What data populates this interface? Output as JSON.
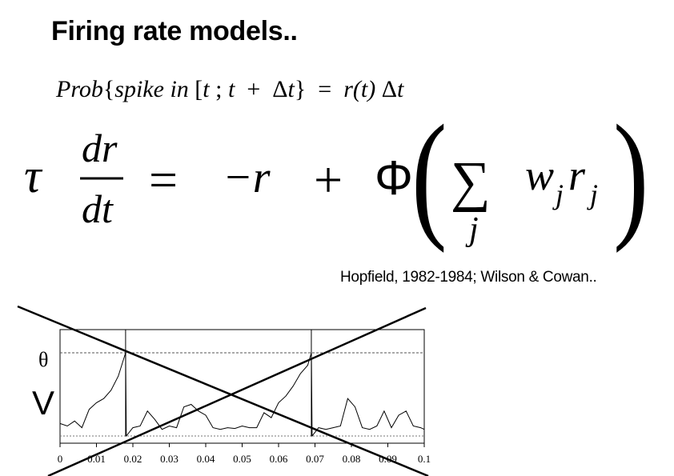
{
  "slide": {
    "title": "Firing rate models..",
    "equation1": {
      "prob": "Prob",
      "open_brace": "{",
      "spike": "spike",
      "in": "in",
      "bracket": "[",
      "t1": "t",
      "semicolon": ";",
      "t2": "t",
      "plus": "+",
      "delta": "Δ",
      "t3": "t",
      "close_brace": "}",
      "equals": "=",
      "r": "r",
      "paren_t": "(t)",
      "delta2": "Δ",
      "t4": "t"
    },
    "equation2": {
      "tau": "τ",
      "dr": "dr",
      "dt": "dt",
      "equals": "=",
      "minus_r": "−r",
      "plus": "+",
      "phi": "Φ",
      "sum": "∑",
      "sum_index": "j",
      "w": "w",
      "w_sub": "j",
      "r": "r",
      "r_sub": "j"
    },
    "citation": "Hopfield, 1982-1984; Wilson & Cowan..",
    "figure": {
      "threshold_label": "θ",
      "voltage_label": "V",
      "crossed_out": true
    }
  },
  "chart_data": {
    "type": "line",
    "title": "",
    "xlabel": "",
    "ylabel": "V",
    "x_ticks": [
      "0",
      "0.01",
      "0.02",
      "0.03",
      "0.04",
      "0.05",
      "0.06",
      "0.07",
      "0.08",
      "0.09",
      "0.1"
    ],
    "xlim": [
      0,
      0.1
    ],
    "threshold": "θ",
    "spike_times": [
      0.018,
      0.069
    ],
    "grid": false,
    "series": [
      {
        "x": [
          0,
          0.002,
          0.004,
          0.006,
          0.008,
          0.01,
          0.012,
          0.014,
          0.016,
          0.018,
          0.0182,
          0.02,
          0.022,
          0.024,
          0.026,
          0.028,
          0.03,
          0.032,
          0.034,
          0.036,
          0.038,
          0.04,
          0.042,
          0.044,
          0.046,
          0.048,
          0.05,
          0.052,
          0.054,
          0.056,
          0.058,
          0.06,
          0.062,
          0.064,
          0.066,
          0.068,
          0.069,
          0.0692,
          0.071,
          0.073,
          0.075,
          0.077,
          0.079,
          0.081,
          0.083,
          0.085,
          0.087,
          0.089,
          0.091,
          0.093,
          0.095,
          0.097,
          0.099,
          0.1
        ],
        "y": [
          0.15,
          0.12,
          0.18,
          0.1,
          0.32,
          0.4,
          0.45,
          0.55,
          0.72,
          1.0,
          0.0,
          0.1,
          0.12,
          0.3,
          0.2,
          0.08,
          0.12,
          0.1,
          0.35,
          0.38,
          0.3,
          0.25,
          0.1,
          0.08,
          0.1,
          0.09,
          0.12,
          0.1,
          0.1,
          0.28,
          0.22,
          0.4,
          0.48,
          0.6,
          0.75,
          0.85,
          1.0,
          0.0,
          0.1,
          0.08,
          0.1,
          0.12,
          0.45,
          0.35,
          0.1,
          0.08,
          0.12,
          0.3,
          0.1,
          0.25,
          0.3,
          0.12,
          0.1,
          0.08
        ]
      }
    ]
  }
}
